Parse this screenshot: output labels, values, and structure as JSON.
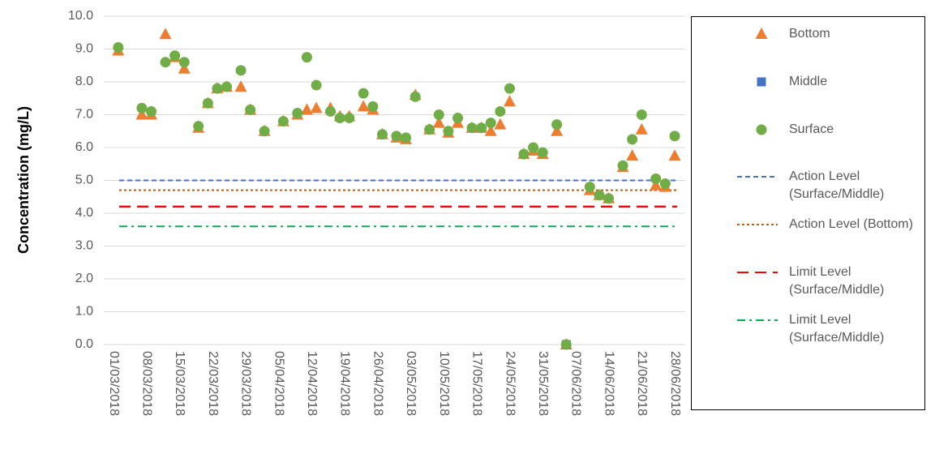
{
  "chart_data": {
    "type": "scatter",
    "y_label": "Concentration (mg/L)",
    "ylim": [
      0,
      10
    ],
    "yticks": [
      {
        "value": 0,
        "label": "0.0"
      },
      {
        "value": 1,
        "label": "1.0"
      },
      {
        "value": 2,
        "label": "2.0"
      },
      {
        "value": 3,
        "label": "3.0"
      },
      {
        "value": 4,
        "label": "4.0"
      },
      {
        "value": 5,
        "label": "5.0"
      },
      {
        "value": 6,
        "label": "6.0"
      },
      {
        "value": 7,
        "label": "7.0"
      },
      {
        "value": 8,
        "label": "8.0"
      },
      {
        "value": 9,
        "label": "9.0"
      },
      {
        "value": 10,
        "label": "10.0"
      }
    ],
    "xticks": [
      "01/03/2018",
      "08/03/2018",
      "15/03/2018",
      "22/03/2018",
      "29/03/2018",
      "05/04/2018",
      "12/04/2018",
      "19/04/2018",
      "26/04/2018",
      "03/05/2018",
      "10/05/2018",
      "17/05/2018",
      "24/05/2018",
      "31/05/2018",
      "07/06/2018",
      "14/06/2018",
      "21/06/2018",
      "28/06/2018"
    ],
    "grid": true,
    "x": [
      "02/03/2018",
      "07/03/2018",
      "09/03/2018",
      "12/03/2018",
      "14/03/2018",
      "16/03/2018",
      "19/03/2018",
      "21/03/2018",
      "23/03/2018",
      "25/03/2018",
      "28/03/2018",
      "30/03/2018",
      "02/04/2018",
      "06/04/2018",
      "09/04/2018",
      "11/04/2018",
      "13/04/2018",
      "16/04/2018",
      "18/04/2018",
      "20/04/2018",
      "23/04/2018",
      "25/04/2018",
      "27/04/2018",
      "30/04/2018",
      "02/05/2018",
      "04/05/2018",
      "07/05/2018",
      "09/05/2018",
      "11/05/2018",
      "13/05/2018",
      "16/05/2018",
      "18/05/2018",
      "20/05/2018",
      "22/05/2018",
      "24/05/2018",
      "27/05/2018",
      "29/05/2018",
      "31/05/2018",
      "03/06/2018",
      "05/06/2018",
      "10/06/2018",
      "12/06/2018",
      "14/06/2018",
      "17/06/2018",
      "19/06/2018",
      "21/06/2018",
      "24/06/2018",
      "26/06/2018",
      "28/06/2018"
    ],
    "series": [
      {
        "name": "Bottom",
        "color": "#ED7D31",
        "marker": "triangle",
        "values": [
          8.95,
          7.0,
          7.0,
          9.45,
          8.75,
          8.4,
          6.6,
          7.35,
          7.8,
          7.85,
          7.85,
          7.15,
          6.5,
          6.8,
          7.0,
          7.15,
          7.2,
          7.2,
          6.95,
          6.95,
          7.25,
          7.15,
          6.4,
          6.3,
          6.25,
          7.6,
          6.55,
          6.75,
          6.45,
          6.75,
          6.6,
          6.6,
          6.5,
          6.7,
          7.4,
          5.8,
          5.9,
          5.8,
          6.5,
          0,
          4.7,
          4.55,
          4.45,
          5.4,
          5.75,
          6.55,
          4.85,
          4.8,
          5.75
        ]
      },
      {
        "name": "Middle",
        "color": "#4472C4",
        "marker": "square",
        "values": [
          null,
          null,
          null,
          null,
          null,
          null,
          null,
          null,
          null,
          null,
          null,
          null,
          null,
          null,
          null,
          null,
          null,
          null,
          null,
          null,
          null,
          null,
          null,
          null,
          null,
          null,
          null,
          null,
          null,
          null,
          null,
          null,
          null,
          null,
          null,
          null,
          null,
          null,
          null,
          0,
          null,
          null,
          null,
          null,
          null,
          null,
          null,
          null,
          null
        ]
      },
      {
        "name": "Surface",
        "color": "#70AD47",
        "marker": "circle",
        "values": [
          9.05,
          7.2,
          7.1,
          8.6,
          8.8,
          8.6,
          6.65,
          7.35,
          7.8,
          7.85,
          8.35,
          7.15,
          6.5,
          6.8,
          7.05,
          8.75,
          7.9,
          7.1,
          6.9,
          6.9,
          7.65,
          7.25,
          6.4,
          6.35,
          6.3,
          7.55,
          6.55,
          7.0,
          6.5,
          6.9,
          6.6,
          6.6,
          6.75,
          7.1,
          7.8,
          5.8,
          6.0,
          5.85,
          6.7,
          0,
          4.8,
          4.55,
          4.45,
          5.45,
          6.25,
          7.0,
          5.05,
          4.9,
          6.35
        ]
      }
    ],
    "levels": [
      {
        "name": "Action Level (Surface/Middle)",
        "color": "#4472C4",
        "dash": "dash",
        "value": 5.0
      },
      {
        "name": "Action Level (Bottom)",
        "color": "#C55A11",
        "dash": "dot",
        "value": 4.7
      },
      {
        "name": "Limit Level (Surface/Middle)",
        "color": "#FF0000",
        "dash": "longdash",
        "value": 4.2
      },
      {
        "name": "Limit Level (Surface/Middle)",
        "color": "#00B050",
        "dash": "dashdot",
        "value": 3.6
      }
    ]
  }
}
